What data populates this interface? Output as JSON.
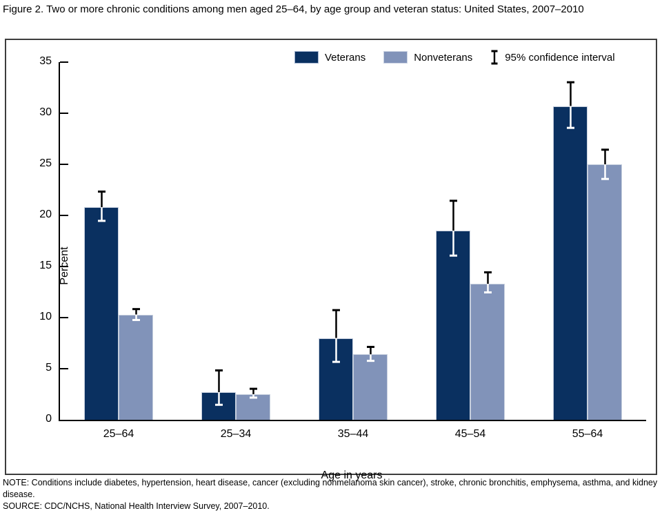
{
  "figure": {
    "title": "Figure 2. Two or more chronic conditions among men aged 25–64, by age group and veteran status:  United States, 2007–2010",
    "note": "NOTE: Conditions include diabetes, hypertension, heart disease, cancer (excluding nonmelanoma skin cancer), stroke, chronic bronchitis, emphysema, asthma, and kidney disease.",
    "source": "SOURCE: CDC/NCHS, National Health Interview Survey, 2007–2010."
  },
  "legend": {
    "veterans_label": "Veterans",
    "nonveterans_label": "Nonveterans",
    "ci_label": "95% confidence interval"
  },
  "colors": {
    "veterans": "#0a3060",
    "nonveterans": "#8193b9",
    "bar_outline": "#c5cedd",
    "axis": "#000000"
  },
  "chart_data": {
    "type": "bar",
    "title": "Two or more chronic conditions among men aged 25–64, by age group and veteran status: United States, 2007–2010",
    "xlabel": "Age in years",
    "ylabel": "Percent",
    "ylim": [
      0,
      35
    ],
    "ytick_step": 5,
    "grid": false,
    "legend_position": "top",
    "error_bars": "95% confidence interval",
    "categories": [
      "25–64",
      "25–34",
      "35–44",
      "45–54",
      "55–64"
    ],
    "series": [
      {
        "name": "Veterans",
        "color": "#0a3060",
        "values": [
          20.8,
          2.7,
          8.0,
          18.5,
          30.7
        ],
        "ci_low": [
          19.4,
          1.4,
          5.6,
          16.0,
          28.5
        ],
        "ci_high": [
          22.4,
          4.9,
          10.8,
          21.5,
          33.1
        ]
      },
      {
        "name": "Nonveterans",
        "color": "#8193b9",
        "values": [
          10.3,
          2.5,
          6.4,
          13.3,
          25.0
        ],
        "ci_low": [
          9.7,
          2.1,
          5.7,
          12.4,
          23.5
        ],
        "ci_high": [
          10.9,
          3.1,
          7.2,
          14.5,
          26.5
        ]
      }
    ]
  }
}
